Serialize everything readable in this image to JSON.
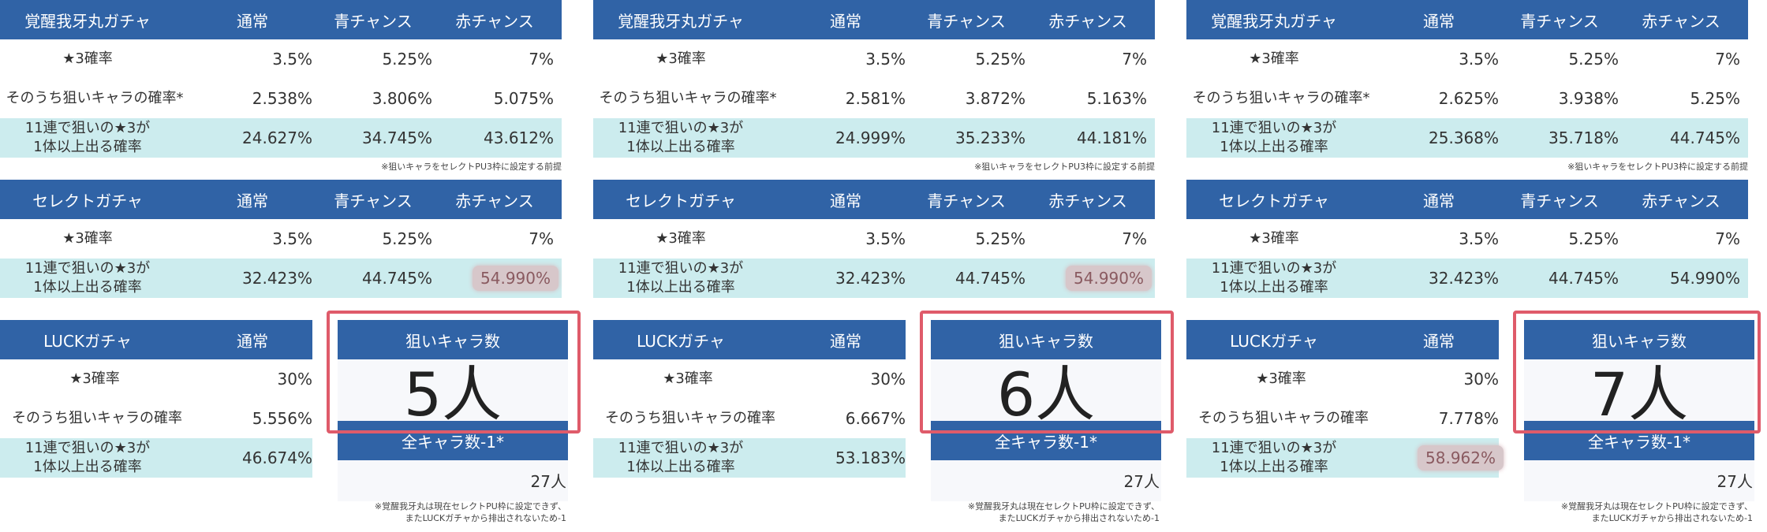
{
  "panels": [
    {
      "awaken": {
        "title": "覚醒我牙丸ガチャ",
        "cols": [
          "通常",
          "青チャンス",
          "赤チャンス"
        ],
        "row1": {
          "label": "★3確率",
          "vals": [
            "3.5%",
            "5.25%",
            "7%"
          ]
        },
        "row2": {
          "label": "そのうち狙いキャラの確率*",
          "vals": [
            "2.538%",
            "3.806%",
            "5.075%"
          ]
        },
        "row3": {
          "label1": "11連で狙いの★3が",
          "label2": "1体以上出る確率",
          "vals": [
            "24.627%",
            "34.745%",
            "43.612%"
          ]
        },
        "note": "※狙いキャラをセレクトPU3枠に設定する前提"
      },
      "select": {
        "title": "セレクトガチャ",
        "cols": [
          "通常",
          "青チャンス",
          "赤チャンス"
        ],
        "row1": {
          "label": "★3確率",
          "vals": [
            "3.5%",
            "5.25%",
            "7%"
          ]
        },
        "row2": {
          "label1": "11連で狙いの★3が",
          "label2": "1体以上出る確率",
          "vals": [
            "32.423%",
            "44.745%",
            "54.990%"
          ]
        }
      },
      "luck": {
        "title": "LUCKガチャ",
        "col": "通常",
        "row1": {
          "label": "★3確率",
          "val": "30%"
        },
        "row2": {
          "label": "そのうち狙いキャラの確率",
          "val": "5.556%"
        },
        "row3": {
          "label1": "11連で狙いの★3が",
          "label2": "1体以上出る確率",
          "val": "46.674%"
        }
      },
      "target": {
        "header": "狙いキャラ数",
        "count": "5人",
        "sub_header": "全キャラ数-1*",
        "total": "27人",
        "note1": "※覚醒我牙丸は現在セレクトPU枠に設定できず、",
        "note2": "またLUCKガチャから排出されないため-1"
      }
    },
    {
      "awaken": {
        "title": "覚醒我牙丸ガチャ",
        "cols": [
          "通常",
          "青チャンス",
          "赤チャンス"
        ],
        "row1": {
          "label": "★3確率",
          "vals": [
            "3.5%",
            "5.25%",
            "7%"
          ]
        },
        "row2": {
          "label": "そのうち狙いキャラの確率*",
          "vals": [
            "2.581%",
            "3.872%",
            "5.163%"
          ]
        },
        "row3": {
          "label1": "11連で狙いの★3が",
          "label2": "1体以上出る確率",
          "vals": [
            "24.999%",
            "35.233%",
            "44.181%"
          ]
        },
        "note": "※狙いキャラをセレクトPU3枠に設定する前提"
      },
      "select": {
        "title": "セレクトガチャ",
        "cols": [
          "通常",
          "青チャンス",
          "赤チャンス"
        ],
        "row1": {
          "label": "★3確率",
          "vals": [
            "3.5%",
            "5.25%",
            "7%"
          ]
        },
        "row2": {
          "label1": "11連で狙いの★3が",
          "label2": "1体以上出る確率",
          "vals": [
            "32.423%",
            "44.745%",
            "54.990%"
          ]
        }
      },
      "luck": {
        "title": "LUCKガチャ",
        "col": "通常",
        "row1": {
          "label": "★3確率",
          "val": "30%"
        },
        "row2": {
          "label": "そのうち狙いキャラの確率",
          "val": "6.667%"
        },
        "row3": {
          "label1": "11連で狙いの★3が",
          "label2": "1体以上出る確率",
          "val": "53.183%"
        }
      },
      "target": {
        "header": "狙いキャラ数",
        "count": "6人",
        "sub_header": "全キャラ数-1*",
        "total": "27人",
        "note1": "※覚醒我牙丸は現在セレクトPU枠に設定できず、",
        "note2": "またLUCKガチャから排出されないため-1"
      }
    },
    {
      "awaken": {
        "title": "覚醒我牙丸ガチャ",
        "cols": [
          "通常",
          "青チャンス",
          "赤チャンス"
        ],
        "row1": {
          "label": "★3確率",
          "vals": [
            "3.5%",
            "5.25%",
            "7%"
          ]
        },
        "row2": {
          "label": "そのうち狙いキャラの確率*",
          "vals": [
            "2.625%",
            "3.938%",
            "5.25%"
          ]
        },
        "row3": {
          "label1": "11連で狙いの★3が",
          "label2": "1体以上出る確率",
          "vals": [
            "25.368%",
            "35.718%",
            "44.745%"
          ]
        },
        "note": "※狙いキャラをセレクトPU3枠に設定する前提"
      },
      "select": {
        "title": "セレクトガチャ",
        "cols": [
          "通常",
          "青チャンス",
          "赤チャンス"
        ],
        "row1": {
          "label": "★3確率",
          "vals": [
            "3.5%",
            "5.25%",
            "7%"
          ]
        },
        "row2": {
          "label1": "11連で狙いの★3が",
          "label2": "1体以上出る確率",
          "vals": [
            "32.423%",
            "44.745%",
            "54.990%"
          ]
        }
      },
      "luck": {
        "title": "LUCKガチャ",
        "col": "通常",
        "row1": {
          "label": "★3確率",
          "val": "30%"
        },
        "row2": {
          "label": "そのうち狙いキャラの確率",
          "val": "7.778%"
        },
        "row3": {
          "label1": "11連で狙いの★3が",
          "label2": "1体以上出る確率",
          "val": "58.962%"
        }
      },
      "target": {
        "header": "狙いキャラ数",
        "count": "7人",
        "sub_header": "全キャラ数-1*",
        "total": "27人",
        "note1": "※覚醒我牙丸は現在セレクトPU枠に設定できず、",
        "note2": "またLUCKガチャから排出されないため-1"
      }
    }
  ],
  "colors": {
    "header_blue": "#3063a6",
    "row_cyan": "#ccecee",
    "highlight_border": "#df5b6a"
  }
}
